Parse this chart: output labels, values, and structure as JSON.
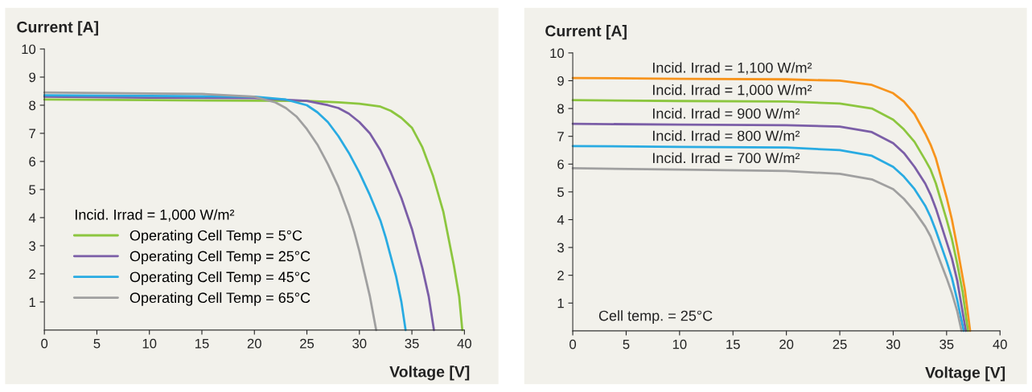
{
  "chart_data": [
    {
      "type": "line",
      "ylabel": "Current [A]",
      "xlabel": "Voltage [V]",
      "xlim": [
        0,
        40
      ],
      "ylim": [
        0,
        10
      ],
      "xticks": [
        0,
        5,
        10,
        15,
        20,
        25,
        30,
        35,
        40
      ],
      "yticks": [
        1,
        2,
        3,
        4,
        5,
        6,
        7,
        8,
        9,
        10
      ],
      "legend": "bottom left",
      "legend_title": "Incid. Irrad = 1,000 W/m²",
      "grid": false,
      "marker": "none",
      "line_style": "solid",
      "series": [
        {
          "name": "Operating Cell Temp = 5°C",
          "color": "#8cc63f",
          "x": [
            0,
            10,
            20,
            25,
            28,
            30,
            32,
            33,
            34,
            35,
            36,
            37,
            38,
            39,
            39.5,
            39.8
          ],
          "values": [
            8.2,
            8.18,
            8.16,
            8.15,
            8.1,
            8.05,
            7.95,
            7.8,
            7.55,
            7.2,
            6.5,
            5.5,
            4.2,
            2.3,
            1.2,
            0
          ]
        },
        {
          "name": "Operating Cell Temp = 25°C",
          "color": "#7b5ea7",
          "x": [
            0,
            10,
            20,
            25,
            27,
            28,
            29,
            30,
            31,
            32,
            33,
            34,
            35,
            36,
            36.6,
            37.1
          ],
          "values": [
            8.3,
            8.27,
            8.25,
            8.15,
            8.0,
            7.9,
            7.7,
            7.4,
            7.0,
            6.4,
            5.6,
            4.7,
            3.6,
            2.2,
            1.2,
            0
          ]
        },
        {
          "name": "Operating Cell Temp = 45°C",
          "color": "#29abe2",
          "x": [
            0,
            10,
            20,
            23,
            25,
            26,
            27,
            28,
            29,
            30,
            31,
            32,
            32.5,
            33,
            33.5,
            34,
            34.4
          ],
          "values": [
            8.35,
            8.33,
            8.3,
            8.2,
            8.0,
            7.75,
            7.4,
            6.9,
            6.3,
            5.6,
            4.8,
            3.9,
            3.3,
            2.6,
            1.9,
            1.0,
            0
          ]
        },
        {
          "name": "Operating Cell Temp = 65°C",
          "color": "#a0a0a0",
          "x": [
            0,
            10,
            15,
            20,
            22,
            23,
            24,
            25,
            26,
            27,
            28,
            29,
            29.5,
            30,
            30.5,
            31,
            31.6
          ],
          "values": [
            8.45,
            8.42,
            8.4,
            8.3,
            8.1,
            7.9,
            7.6,
            7.15,
            6.6,
            5.9,
            5.1,
            4.1,
            3.5,
            2.8,
            2.0,
            1.2,
            0
          ]
        }
      ]
    },
    {
      "type": "line",
      "ylabel": "Current [A]",
      "xlabel": "Voltage [V]",
      "xlim": [
        0,
        40
      ],
      "ylim": [
        0,
        10
      ],
      "xticks": [
        0,
        5,
        10,
        15,
        20,
        25,
        30,
        35,
        40
      ],
      "yticks": [
        1,
        2,
        3,
        4,
        5,
        6,
        7,
        8,
        9,
        10
      ],
      "legend": false,
      "grid": false,
      "marker": "none",
      "line_style": "solid",
      "annotations": [
        "Cell temp. = 25°C"
      ],
      "series": [
        {
          "name": "Incid. Irrad = 1,100 W/m²",
          "color": "#f7941d",
          "x": [
            0,
            10,
            20,
            25,
            28,
            30,
            31,
            32,
            33,
            33.5,
            34,
            35,
            35.5,
            36,
            36.7,
            37.2
          ],
          "values": [
            9.1,
            9.07,
            9.05,
            9.0,
            8.85,
            8.55,
            8.25,
            7.8,
            7.1,
            6.7,
            6.2,
            4.8,
            4.0,
            3.0,
            1.5,
            0
          ]
        },
        {
          "name": "Incid. Irrad = 1,000 W/m²",
          "color": "#8cc63f",
          "x": [
            0,
            10,
            20,
            25,
            28,
            30,
            31,
            32,
            33,
            33.5,
            34,
            35,
            35.5,
            36,
            36.5,
            37.0
          ],
          "values": [
            8.3,
            8.27,
            8.25,
            8.18,
            8.0,
            7.6,
            7.25,
            6.8,
            6.15,
            5.8,
            5.3,
            4.0,
            3.3,
            2.4,
            1.4,
            0
          ]
        },
        {
          "name": "Incid. Irrad = 900 W/m²",
          "color": "#7b5ea7",
          "x": [
            0,
            10,
            20,
            25,
            28,
            30,
            31,
            32,
            33,
            33.5,
            34,
            35,
            35.5,
            36,
            36.8
          ],
          "values": [
            7.45,
            7.42,
            7.4,
            7.35,
            7.15,
            6.75,
            6.4,
            5.9,
            5.3,
            4.9,
            4.4,
            3.2,
            2.6,
            1.8,
            0
          ]
        },
        {
          "name": "Incid. Irrad = 800 W/m²",
          "color": "#29abe2",
          "x": [
            0,
            10,
            20,
            25,
            28,
            30,
            31,
            32,
            33,
            33.5,
            34,
            35,
            35.5,
            36,
            36.6
          ],
          "values": [
            6.65,
            6.62,
            6.6,
            6.5,
            6.3,
            5.9,
            5.55,
            5.1,
            4.5,
            4.1,
            3.6,
            2.5,
            1.9,
            1.1,
            0
          ]
        },
        {
          "name": "Incid. Irrad = 700 W/m²",
          "color": "#a0a0a0",
          "x": [
            0,
            10,
            20,
            25,
            28,
            30,
            31,
            32,
            33,
            33.5,
            34,
            35,
            35.5,
            36,
            36.4
          ],
          "values": [
            5.85,
            5.8,
            5.75,
            5.65,
            5.45,
            5.1,
            4.75,
            4.3,
            3.75,
            3.4,
            2.9,
            1.9,
            1.35,
            0.7,
            0
          ]
        }
      ]
    }
  ]
}
